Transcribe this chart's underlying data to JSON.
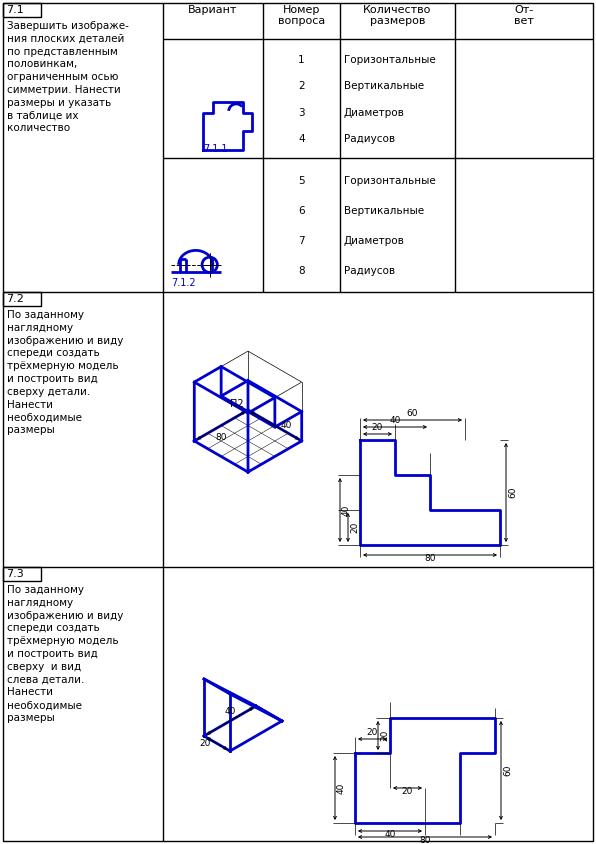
{
  "bg_color": "#ffffff",
  "blue": "#0000CC",
  "black": "#000000",
  "section_labels": [
    "7.1",
    "7.2",
    "7.3"
  ],
  "label_711": "7.1.1",
  "label_712": "7.1.2",
  "label_P2": "П2",
  "section_71_text": "Завершить изображе-\nния плоских деталей\nпо представленным\nполовинкам,\nограниченным осью\nсимметрии. Нанести\nразмеры и указать\nв таблице их\nколичество",
  "section_72_text": "По заданному\nнаглядному\nизображению и виду\nспереди создать\nтрёхмерную модель\nи построить вид\nсверху детали.\nНанести\nнеобходимые\nразмеры",
  "section_73_text": "По заданному\nнаглядному\nизображению и виду\nспереди создать\nтрёхмерную модель\nи построить вид\nсверху  и вид\nслева детали.\nНанести\nнеобходимые\nразмеры",
  "dim_types": [
    "Горизонтальные",
    "Вертикальные",
    "Диаметров",
    "Радиусов"
  ],
  "header_variant": "Вариант",
  "header_nomer": "Номер",
  "header_voprosa": "вопроса",
  "header_kol": "Количество",
  "header_razm": "размеров",
  "header_otv1": "От-",
  "header_otv2": "вет"
}
